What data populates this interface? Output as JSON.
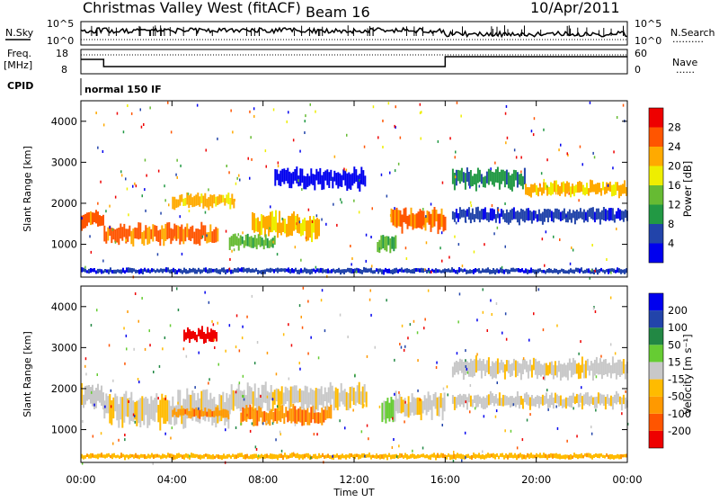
{
  "header": {
    "station": "Christmas Valley West (fitACF)",
    "beam": "Beam 16",
    "date": "10/Apr/2011"
  },
  "left_labels": {
    "nsky": "N.Sky",
    "freq": "Freq.",
    "freq_unit": "[MHz]",
    "cpid": "CPID"
  },
  "right_labels": {
    "nsearch": "N.Search",
    "nsearch_line": "··········",
    "nave": "Nave",
    "nave_line": "······"
  },
  "noise_axis": {
    "left_top": "10^5",
    "left_bottom": "10^0",
    "right_top": "10^5",
    "right_bottom": "10^0"
  },
  "freq_axis": {
    "left_ticks": [
      "18",
      "8"
    ],
    "right_ticks": [
      "60",
      "0"
    ]
  },
  "cpid_text": "normal 150 IF",
  "chart_data": [
    {
      "type": "heatmap",
      "name": "power",
      "ylabel": "Slant Range [km]",
      "y_ticks": [
        "1000",
        "2000",
        "3000",
        "4000"
      ],
      "ylim": [
        200,
        4500
      ],
      "colorbar_label": "Power [dB]",
      "colorbar_ticks": [
        "4",
        "8",
        "12",
        "16",
        "20",
        "24",
        "28"
      ],
      "colors": [
        "#0000ee",
        "#2244aa",
        "#229944",
        "#66bb33",
        "#eeee00",
        "#ffaa00",
        "#ff5500",
        "#ee0000"
      ],
      "bands": [
        {
          "from": 0.0,
          "to": 1.0,
          "center": 1600,
          "width": 350,
          "level": 6
        },
        {
          "from": 1.0,
          "to": 6.0,
          "center": 1250,
          "width": 400,
          "level": 6
        },
        {
          "from": 4.0,
          "to": 6.7,
          "center": 2050,
          "width": 300,
          "level": 5
        },
        {
          "from": 7.5,
          "to": 10.5,
          "center": 1450,
          "width": 500,
          "level": 5
        },
        {
          "from": 6.5,
          "to": 8.5,
          "center": 1050,
          "width": 300,
          "level": 3
        },
        {
          "from": 13.0,
          "to": 13.8,
          "center": 1000,
          "width": 350,
          "level": 3
        },
        {
          "from": 13.6,
          "to": 16.0,
          "center": 1600,
          "width": 450,
          "level": 6
        },
        {
          "from": 16.3,
          "to": 19.5,
          "center": 2600,
          "width": 400,
          "level": 2
        },
        {
          "from": 19.5,
          "to": 24.0,
          "center": 2350,
          "width": 300,
          "level": 5
        },
        {
          "from": 16.3,
          "to": 24.0,
          "center": 1700,
          "width": 300,
          "level": 1
        },
        {
          "from": 8.5,
          "to": 12.5,
          "center": 2600,
          "width": 400,
          "level": 0
        },
        {
          "from": 0.0,
          "to": 24.0,
          "center": 350,
          "width": 120,
          "level": 1
        }
      ]
    },
    {
      "type": "heatmap",
      "name": "velocity",
      "ylabel": "Slant Range [km]",
      "y_ticks": [
        "1000",
        "2000",
        "3000",
        "4000"
      ],
      "ylim": [
        200,
        4500
      ],
      "colorbar_label": "Velocity [m s⁻¹]",
      "colorbar_ticks": [
        "-200",
        "-100",
        "-50",
        "-15",
        "15",
        "50",
        "100",
        "200"
      ],
      "colors": [
        "#ee0000",
        "#ff5500",
        "#ff9900",
        "#ffbb00",
        "#c8c8c8",
        "#66cc33",
        "#228844",
        "#2244aa",
        "#0000ee"
      ],
      "bands": [
        {
          "from": 0.0,
          "to": 1.0,
          "center": 1800,
          "width": 500,
          "level": 4
        },
        {
          "from": 1.0,
          "to": 6.5,
          "center": 1500,
          "width": 700,
          "level": 4
        },
        {
          "from": 4.0,
          "to": 6.5,
          "center": 1400,
          "width": 200,
          "level": 2
        },
        {
          "from": 6.5,
          "to": 8.0,
          "center": 1700,
          "width": 600,
          "level": 4
        },
        {
          "from": 7.0,
          "to": 11.0,
          "center": 1350,
          "width": 400,
          "level": 2
        },
        {
          "from": 8.0,
          "to": 12.5,
          "center": 1800,
          "width": 500,
          "level": 4
        },
        {
          "from": 13.2,
          "to": 13.8,
          "center": 1500,
          "width": 500,
          "level": 5
        },
        {
          "from": 13.8,
          "to": 16.0,
          "center": 1600,
          "width": 500,
          "level": 4
        },
        {
          "from": 16.3,
          "to": 24.0,
          "center": 2500,
          "width": 400,
          "level": 4
        },
        {
          "from": 16.3,
          "to": 24.0,
          "center": 1700,
          "width": 300,
          "level": 4
        },
        {
          "from": 4.5,
          "to": 6.0,
          "center": 3300,
          "width": 300,
          "level": 0
        },
        {
          "from": 0.0,
          "to": 24.0,
          "center": 350,
          "width": 120,
          "level": 3
        }
      ]
    }
  ],
  "x_ticks": [
    "00:00",
    "04:00",
    "08:00",
    "12:00",
    "16:00",
    "20:00",
    "00:00"
  ],
  "xlabel": "Time UT"
}
